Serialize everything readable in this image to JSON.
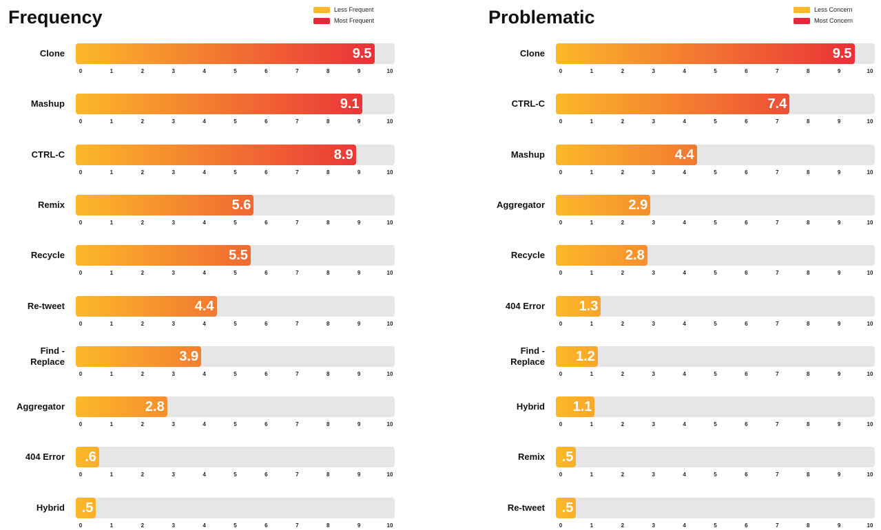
{
  "chart_data": [
    {
      "type": "bar",
      "title": "Frequency",
      "legend": [
        {
          "label": "Less Frequent",
          "color": "#fbb829"
        },
        {
          "label": "Most Frequent",
          "color": "#e8273a"
        }
      ],
      "categories": [
        "Clone",
        "Mashup",
        "CTRL-C",
        "Remix",
        "Recycle",
        "Re-tweet",
        "Find - Replace",
        "Aggregator",
        "404 Error",
        "Hybrid"
      ],
      "values": [
        9.5,
        9.1,
        8.9,
        5.6,
        5.5,
        4.4,
        3.9,
        2.8,
        0.6,
        0.5
      ],
      "value_labels": [
        "9.5",
        "9.1",
        "8.9",
        "5.6",
        "5.5",
        "4.4",
        "3.9",
        "2.8",
        ".6",
        ".5"
      ],
      "xlim": [
        0,
        10
      ],
      "xticks": [
        0,
        1,
        2,
        3,
        4,
        5,
        6,
        7,
        8,
        9,
        10
      ]
    },
    {
      "type": "bar",
      "title": "Problematic",
      "legend": [
        {
          "label": "Less Concern",
          "color": "#fbb829"
        },
        {
          "label": "Most Concern",
          "color": "#e8273a"
        }
      ],
      "categories": [
        "Clone",
        "CTRL-C",
        "Mashup",
        "Aggregator",
        "Recycle",
        "404 Error",
        "Find - Replace",
        "Hybrid",
        "Remix",
        "Re-tweet"
      ],
      "values": [
        9.5,
        7.4,
        4.4,
        2.9,
        2.8,
        1.3,
        1.2,
        1.1,
        0.5,
        0.5
      ],
      "value_labels": [
        "9.5",
        "7.4",
        "4.4",
        "2.9",
        "2.8",
        "1.3",
        "1.2",
        "1.1",
        ".5",
        ".5"
      ],
      "xlim": [
        0,
        10
      ],
      "xticks": [
        0,
        1,
        2,
        3,
        4,
        5,
        6,
        7,
        8,
        9,
        10
      ]
    }
  ]
}
